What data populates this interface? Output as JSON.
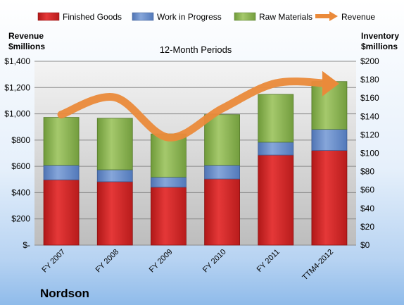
{
  "chart_data": {
    "type": "bar",
    "subtitle": "12-Month Periods",
    "company": "Nordson",
    "left_axis": {
      "label_lines": [
        "Revenue",
        "$millions"
      ],
      "ticks": [
        "$-",
        "$200",
        "$400",
        "$600",
        "$800",
        "$1,000",
        "$1,200",
        "$1,400"
      ],
      "range": [
        0,
        1400
      ]
    },
    "right_axis": {
      "label_lines": [
        "Inventory",
        "$millions"
      ],
      "ticks": [
        "$0",
        "$20",
        "$40",
        "$60",
        "$80",
        "$100",
        "$120",
        "$140",
        "$160",
        "$180",
        "$200"
      ],
      "range": [
        0,
        200
      ]
    },
    "categories": [
      "FY 2007",
      "FY 2008",
      "FY 2009",
      "FY 2010",
      "FY 2011",
      "TTM4-2012"
    ],
    "series": [
      {
        "name": "Finished Goods",
        "axis": "right",
        "values": [
          71,
          69,
          63,
          72,
          98,
          103
        ],
        "color": "#d42a2a"
      },
      {
        "name": "Work in Progress",
        "axis": "right",
        "values": [
          16,
          13,
          11,
          15,
          14,
          23
        ],
        "color": "#6a8fcc"
      },
      {
        "name": "Raw Materials",
        "axis": "right",
        "values": [
          52,
          56,
          47,
          55,
          52,
          52
        ],
        "color": "#8fb554"
      },
      {
        "name": "Revenue",
        "axis": "left",
        "type": "line",
        "values": [
          994,
          1125,
          820,
          1040,
          1233,
          1230
        ],
        "color": "#ea8a3a"
      }
    ],
    "grid": true,
    "legend_position": "top"
  }
}
